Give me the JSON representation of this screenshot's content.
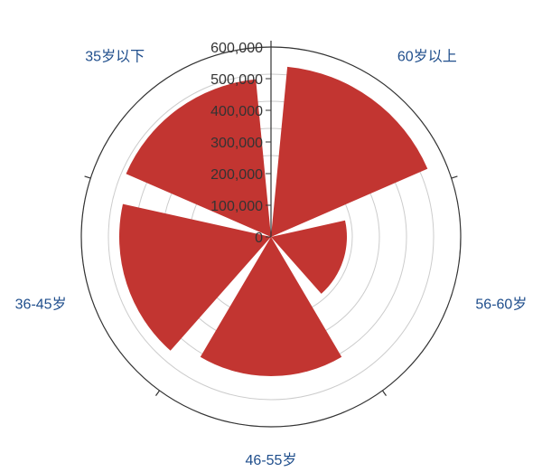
{
  "chart_data": {
    "type": "polar-bar",
    "categories": [
      "60岁以上",
      "56-60岁",
      "46-55岁",
      "36-45岁",
      "35岁以下"
    ],
    "values": [
      540000,
      240000,
      440000,
      480000,
      500000
    ],
    "rlim": [
      0,
      600000
    ],
    "radial_ticks": [
      0,
      100000,
      200000,
      300000,
      400000,
      500000,
      600000
    ],
    "radial_tick_labels": [
      "0",
      "100,000",
      "200,000",
      "300,000",
      "400,000",
      "500,000",
      "600,000"
    ],
    "grid": true,
    "colors": {
      "bar": "#c23531",
      "grid": "#cccccc",
      "axis": "#333333",
      "label": "#1f4e8c"
    }
  }
}
